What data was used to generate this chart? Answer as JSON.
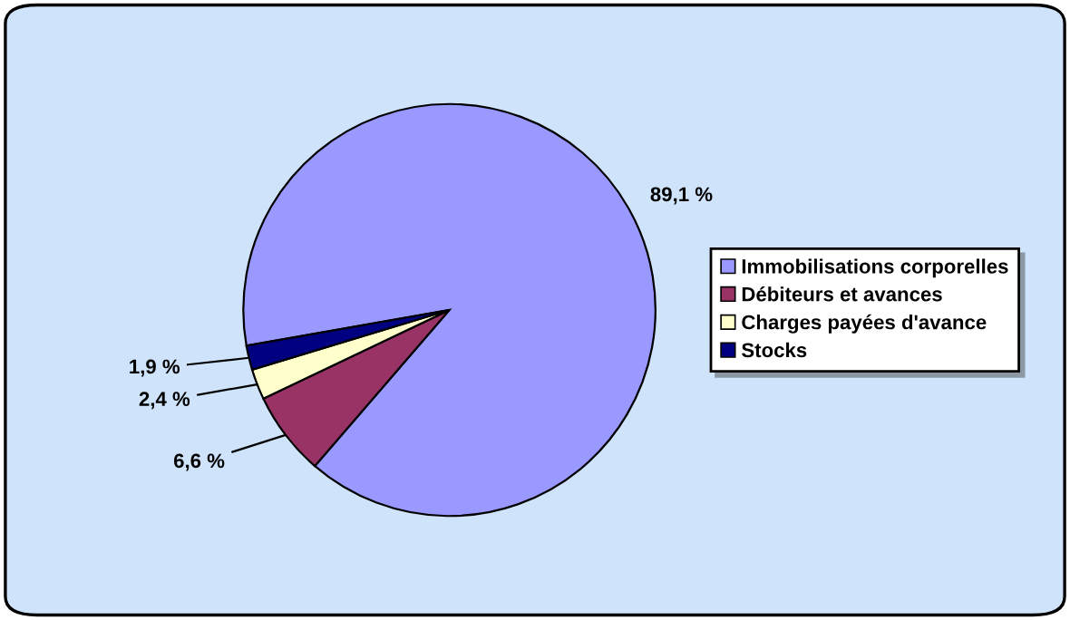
{
  "chart_data": {
    "type": "pie",
    "categories": [
      "Immobilisations corporelles",
      "Débiteurs et avances",
      "Charges payées d'avance",
      "Stocks"
    ],
    "values": [
      89.1,
      6.6,
      2.4,
      1.9
    ],
    "colors": [
      "#9999ff",
      "#993366",
      "#ffffcc",
      "#000080"
    ],
    "value_labels": [
      "89,1 %",
      "6,6 %",
      "2,4 %",
      "1,9 %"
    ],
    "legend": "right"
  }
}
